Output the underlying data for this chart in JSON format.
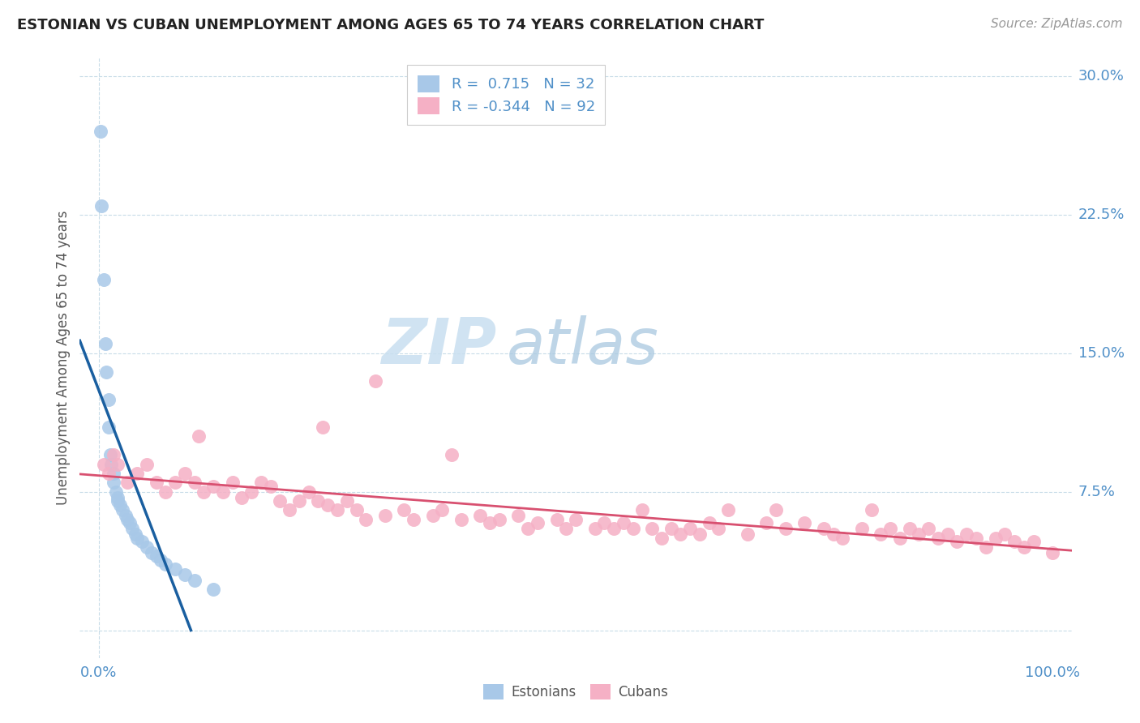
{
  "title": "ESTONIAN VS CUBAN UNEMPLOYMENT AMONG AGES 65 TO 74 YEARS CORRELATION CHART",
  "source": "Source: ZipAtlas.com",
  "ylabel": "Unemployment Among Ages 65 to 74 years",
  "xlim": [
    -2,
    102
  ],
  "ylim": [
    -1.5,
    31
  ],
  "x_tick_positions": [
    0,
    100
  ],
  "x_tick_labels": [
    "0.0%",
    "100.0%"
  ],
  "y_tick_positions": [
    0,
    7.5,
    15.0,
    22.5,
    30.0
  ],
  "y_tick_labels": [
    "",
    "7.5%",
    "15.0%",
    "22.5%",
    "30.0%"
  ],
  "estonian_R": "0.715",
  "estonian_N": "32",
  "cuban_R": "-0.344",
  "cuban_N": "92",
  "estonian_scatter_color": "#a8c8e8",
  "cuban_scatter_color": "#f5b0c5",
  "estonian_line_color": "#1a5fa0",
  "cuban_line_color": "#d85070",
  "grid_color": "#c8dce8",
  "tick_color": "#5090c8",
  "ylabel_color": "#555555",
  "title_color": "#222222",
  "source_color": "#999999",
  "legend_text_color": "#5090c8",
  "bottom_legend_color": "#555555",
  "estonian_x": [
    0.2,
    0.3,
    0.5,
    0.7,
    0.8,
    1.0,
    1.0,
    1.2,
    1.3,
    1.5,
    1.5,
    1.8,
    2.0,
    2.0,
    2.2,
    2.5,
    2.8,
    3.0,
    3.2,
    3.5,
    3.8,
    4.0,
    4.5,
    5.0,
    5.5,
    6.0,
    6.5,
    7.0,
    8.0,
    9.0,
    10.0,
    12.0
  ],
  "estonian_y": [
    27.0,
    23.0,
    19.0,
    15.5,
    14.0,
    12.5,
    11.0,
    9.5,
    9.0,
    8.5,
    8.0,
    7.5,
    7.2,
    7.0,
    6.8,
    6.5,
    6.2,
    6.0,
    5.8,
    5.5,
    5.2,
    5.0,
    4.8,
    4.5,
    4.2,
    4.0,
    3.8,
    3.6,
    3.3,
    3.0,
    2.7,
    2.2
  ],
  "cuban_x": [
    0.5,
    1.0,
    1.5,
    2.0,
    3.0,
    4.0,
    5.0,
    6.0,
    7.0,
    8.0,
    9.0,
    10.0,
    11.0,
    12.0,
    13.0,
    14.0,
    15.0,
    16.0,
    17.0,
    18.0,
    19.0,
    20.0,
    21.0,
    22.0,
    23.0,
    24.0,
    25.0,
    26.0,
    27.0,
    28.0,
    30.0,
    32.0,
    33.0,
    35.0,
    36.0,
    38.0,
    40.0,
    41.0,
    42.0,
    44.0,
    45.0,
    46.0,
    48.0,
    49.0,
    50.0,
    52.0,
    53.0,
    54.0,
    55.0,
    56.0,
    57.0,
    58.0,
    59.0,
    60.0,
    61.0,
    62.0,
    63.0,
    64.0,
    65.0,
    66.0,
    68.0,
    70.0,
    71.0,
    72.0,
    74.0,
    76.0,
    77.0,
    78.0,
    80.0,
    81.0,
    82.0,
    83.0,
    84.0,
    85.0,
    86.0,
    87.0,
    88.0,
    89.0,
    90.0,
    91.0,
    92.0,
    93.0,
    94.0,
    95.0,
    96.0,
    97.0,
    98.0,
    100.0,
    10.5,
    23.5,
    29.0,
    37.0
  ],
  "cuban_y": [
    9.0,
    8.5,
    9.5,
    9.0,
    8.0,
    8.5,
    9.0,
    8.0,
    7.5,
    8.0,
    8.5,
    8.0,
    7.5,
    7.8,
    7.5,
    8.0,
    7.2,
    7.5,
    8.0,
    7.8,
    7.0,
    6.5,
    7.0,
    7.5,
    7.0,
    6.8,
    6.5,
    7.0,
    6.5,
    6.0,
    6.2,
    6.5,
    6.0,
    6.2,
    6.5,
    6.0,
    6.2,
    5.8,
    6.0,
    6.2,
    5.5,
    5.8,
    6.0,
    5.5,
    6.0,
    5.5,
    5.8,
    5.5,
    5.8,
    5.5,
    6.5,
    5.5,
    5.0,
    5.5,
    5.2,
    5.5,
    5.2,
    5.8,
    5.5,
    6.5,
    5.2,
    5.8,
    6.5,
    5.5,
    5.8,
    5.5,
    5.2,
    5.0,
    5.5,
    6.5,
    5.2,
    5.5,
    5.0,
    5.5,
    5.2,
    5.5,
    5.0,
    5.2,
    4.8,
    5.2,
    5.0,
    4.5,
    5.0,
    5.2,
    4.8,
    4.5,
    4.8,
    4.2,
    10.5,
    11.0,
    13.5,
    9.5
  ]
}
